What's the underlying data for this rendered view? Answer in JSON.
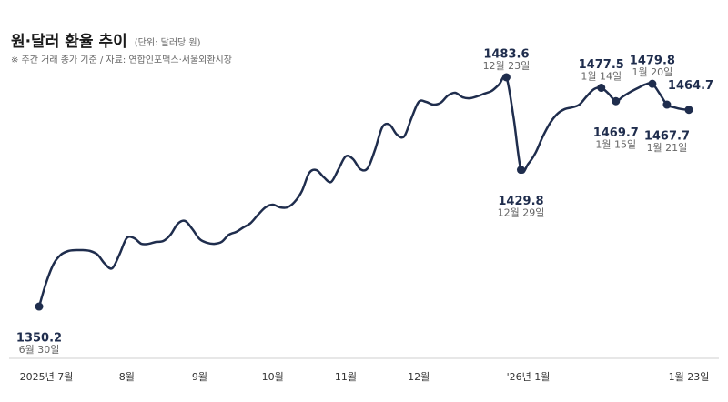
{
  "chart_data": {
    "type": "line",
    "title": "원·달러 환율 추이",
    "subtitle": "(단위: 달러당 원)",
    "note": "※ 주간 거래 종가 기준 / 자료: 연합인포맥스·서울외환시장",
    "categories": [
      null,
      "2025년 7월",
      null,
      null,
      null,
      null,
      null,
      null,
      null,
      null,
      null,
      null,
      "8월",
      null,
      null,
      null,
      null,
      null,
      null,
      null,
      null,
      null,
      "9월",
      null,
      null,
      null,
      null,
      null,
      null,
      null,
      null,
      null,
      "10월",
      null,
      null,
      null,
      null,
      null,
      null,
      null,
      null,
      null,
      "11월",
      null,
      null,
      null,
      null,
      null,
      null,
      null,
      null,
      null,
      "12월",
      null,
      null,
      null,
      null,
      null,
      null,
      null,
      null,
      null,
      null,
      null,
      null,
      null,
      null,
      "'26년 1월",
      null,
      null,
      null,
      null,
      null,
      null,
      null,
      null,
      null,
      null,
      null,
      null,
      null,
      null,
      null,
      null,
      null,
      null,
      null,
      null,
      null,
      "1월 23일"
    ],
    "point_labels": [
      "6월 30일",
      null,
      null,
      null,
      null,
      null,
      null,
      null,
      null,
      null,
      null,
      null,
      null,
      null,
      null,
      null,
      null,
      null,
      null,
      null,
      null,
      null,
      null,
      null,
      null,
      null,
      null,
      null,
      null,
      null,
      null,
      null,
      null,
      null,
      null,
      null,
      null,
      null,
      null,
      null,
      null,
      null,
      null,
      null,
      null,
      null,
      null,
      null,
      null,
      null,
      null,
      null,
      null,
      null,
      null,
      null,
      null,
      null,
      null,
      null,
      null,
      null,
      null,
      null,
      "12월 23일",
      null,
      "12월 29일",
      null,
      null,
      null,
      null,
      null,
      null,
      null,
      null,
      null,
      null,
      "1월 14일",
      null,
      "1월 15일",
      null,
      null,
      null,
      null,
      "1월 20일",
      null,
      "1월 21일",
      null,
      null,
      null
    ],
    "series": [
      {
        "name": "원·달러 환율",
        "color": "#1f2d4d",
        "values": [
          1350.2,
          1364.5,
          1375.1,
          1380.4,
          1382.5,
          1383.0,
          1383.0,
          1382.5,
          1380.4,
          1375.1,
          1372.4,
          1380.4,
          1390.0,
          1390.0,
          1386.7,
          1386.7,
          1387.8,
          1388.3,
          1392.0,
          1398.4,
          1400.0,
          1395.2,
          1389.4,
          1387.3,
          1386.7,
          1387.8,
          1392.0,
          1393.6,
          1396.3,
          1398.9,
          1403.7,
          1407.9,
          1409.5,
          1407.9,
          1407.9,
          1411.1,
          1417.4,
          1428.0,
          1429.6,
          1425.4,
          1422.7,
          1430.1,
          1437.6,
          1436.0,
          1430.1,
          1430.7,
          1441.3,
          1454.5,
          1456.1,
          1450.3,
          1449.2,
          1459.8,
          1469.3,
          1469.3,
          1467.7,
          1468.8,
          1473.0,
          1474.6,
          1472.0,
          1471.4,
          1472.5,
          1474.1,
          1475.7,
          1479.4,
          1483.6,
          1459.8,
          1429.8,
          1433.3,
          1439.7,
          1449.2,
          1457.1,
          1462.4,
          1465.1,
          1466.1,
          1467.7,
          1472.5,
          1476.7,
          1477.5,
          1474.1,
          1469.7,
          1472.5,
          1475.1,
          1477.3,
          1479.4,
          1479.8,
          1474.1,
          1467.7,
          1466.1,
          1465.1,
          1464.7
        ]
      }
    ],
    "ylim": [
      1340,
      1490
    ]
  }
}
